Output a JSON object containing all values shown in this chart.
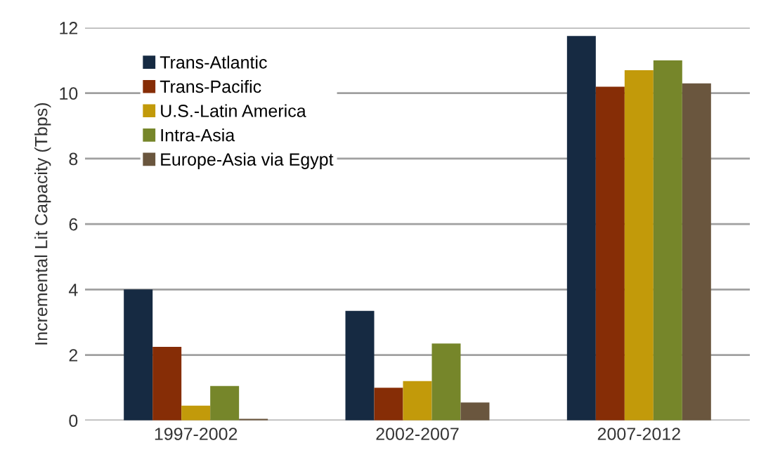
{
  "chart_data": {
    "type": "bar",
    "ylabel": "Incremental Lit Capacity (Tbps)",
    "categories": [
      "1997-2002",
      "2002-2007",
      "2007-2012"
    ],
    "series": [
      {
        "name": "Trans-Atlantic",
        "color": "#162a42",
        "values": [
          4.0,
          3.35,
          11.75
        ]
      },
      {
        "name": "Trans-Pacific",
        "color": "#862d06",
        "values": [
          2.25,
          1.0,
          10.2
        ]
      },
      {
        "name": "U.S.-Latin America",
        "color": "#c29a0a",
        "values": [
          0.45,
          1.2,
          10.7
        ]
      },
      {
        "name": "Intra-Asia",
        "color": "#76862a",
        "values": [
          1.05,
          2.35,
          11.0
        ]
      },
      {
        "name": "Europe-Asia via Egypt",
        "color": "#6a563e",
        "values": [
          0.05,
          0.55,
          10.3
        ]
      }
    ],
    "ylim": [
      0,
      12
    ],
    "yticks": [
      0,
      2,
      4,
      6,
      8,
      10,
      12
    ],
    "grid": "y",
    "legend": "top left"
  }
}
